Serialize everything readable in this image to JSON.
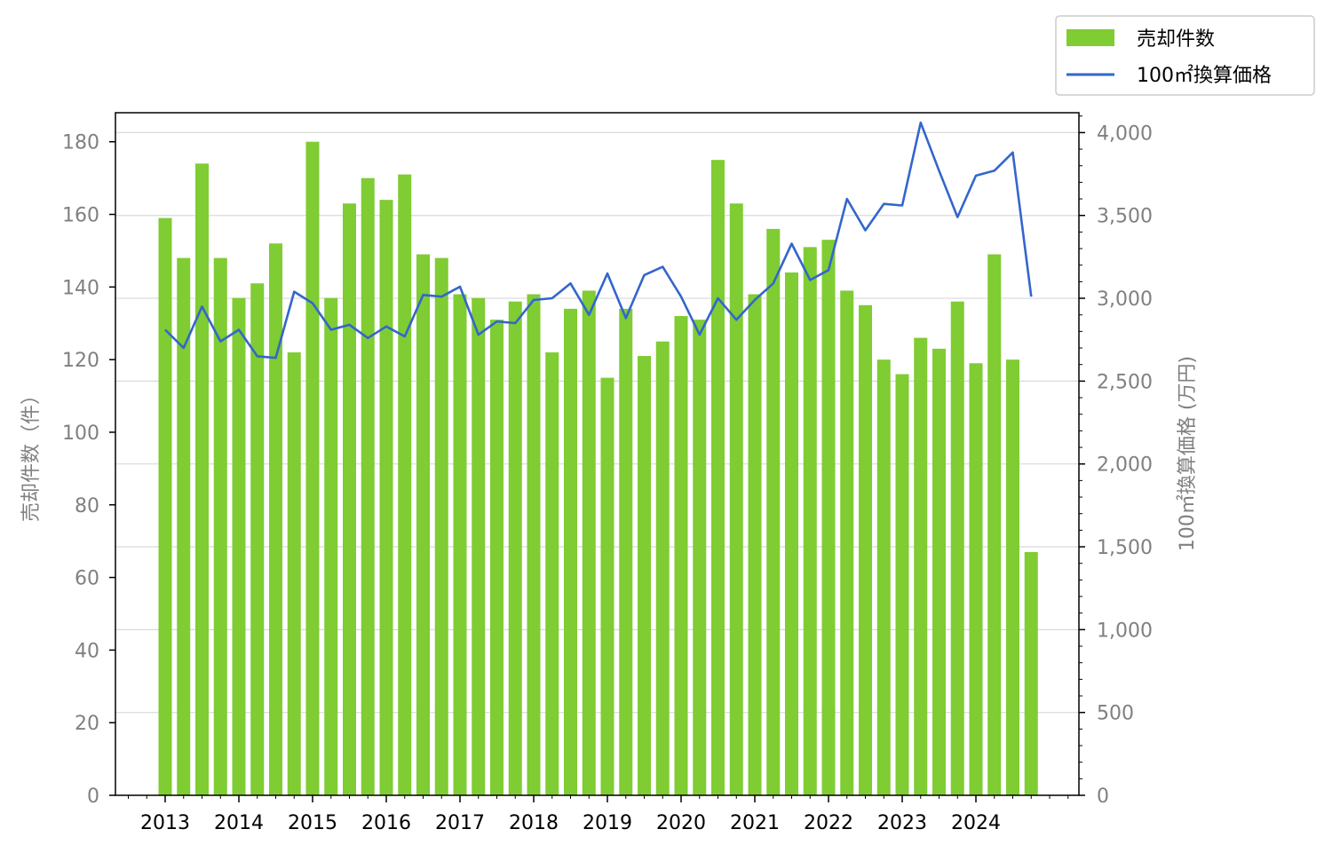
{
  "chart_data": {
    "type": "bar",
    "x": [
      "2013Q1",
      "2013Q2",
      "2013Q3",
      "2013Q4",
      "2014Q1",
      "2014Q2",
      "2014Q3",
      "2014Q4",
      "2015Q1",
      "2015Q2",
      "2015Q3",
      "2015Q4",
      "2016Q1",
      "2016Q2",
      "2016Q3",
      "2016Q4",
      "2017Q1",
      "2017Q2",
      "2017Q3",
      "2017Q4",
      "2018Q1",
      "2018Q2",
      "2018Q3",
      "2018Q4",
      "2019Q1",
      "2019Q2",
      "2019Q3",
      "2019Q4",
      "2020Q1",
      "2020Q2",
      "2020Q3",
      "2020Q4",
      "2021Q1",
      "2021Q2",
      "2021Q3",
      "2021Q4",
      "2022Q1",
      "2022Q2",
      "2022Q3",
      "2022Q4",
      "2023Q1",
      "2023Q2",
      "2023Q3",
      "2023Q4",
      "2024Q1",
      "2024Q2",
      "2024Q3",
      "2024Q4"
    ],
    "x_tick_labels": [
      "2013",
      "2014",
      "2015",
      "2016",
      "2017",
      "2018",
      "2019",
      "2020",
      "2021",
      "2022",
      "2023",
      "2024"
    ],
    "series": [
      {
        "name": "売却件数",
        "axis": "left",
        "type": "bar",
        "color": "#7fcc33",
        "values": [
          159,
          148,
          174,
          148,
          137,
          141,
          152,
          122,
          180,
          137,
          163,
          170,
          164,
          171,
          149,
          148,
          138,
          137,
          131,
          136,
          138,
          122,
          134,
          139,
          115,
          134,
          121,
          125,
          132,
          131,
          175,
          163,
          138,
          156,
          144,
          151,
          153,
          139,
          135,
          120,
          116,
          126,
          123,
          136,
          119,
          149,
          120,
          67
        ]
      },
      {
        "name": "100㎡換算価格",
        "axis": "right",
        "type": "line",
        "color": "#3366cc",
        "values": [
          2810,
          2700,
          2950,
          2740,
          2810,
          2650,
          2640,
          3040,
          2970,
          2810,
          2840,
          2760,
          2830,
          2770,
          3020,
          3010,
          3070,
          2780,
          2860,
          2850,
          2990,
          3000,
          3090,
          2900,
          3150,
          2880,
          3140,
          3190,
          3010,
          2780,
          3000,
          2870,
          2990,
          3090,
          3330,
          3110,
          3170,
          3600,
          3410,
          3570,
          3560,
          4060,
          3770,
          3490,
          3740,
          3770,
          3880,
          3010
        ]
      }
    ],
    "ylabel_left": "売却件数（件）",
    "ylabel_right": "100㎡換算価格 (万円)",
    "ylim_left": [
      0,
      188
    ],
    "ylim_right": [
      0,
      4120
    ],
    "yticks_left": [
      "0",
      "20",
      "40",
      "60",
      "80",
      "100",
      "120",
      "140",
      "160",
      "180"
    ],
    "yticks_right": [
      "0",
      "500",
      "1,000",
      "1,500",
      "2,000",
      "2,500",
      "3,000",
      "3,500",
      "4,000"
    ],
    "grid": "horizontal (right axis)",
    "legend_position": "top-right, outside plot"
  }
}
